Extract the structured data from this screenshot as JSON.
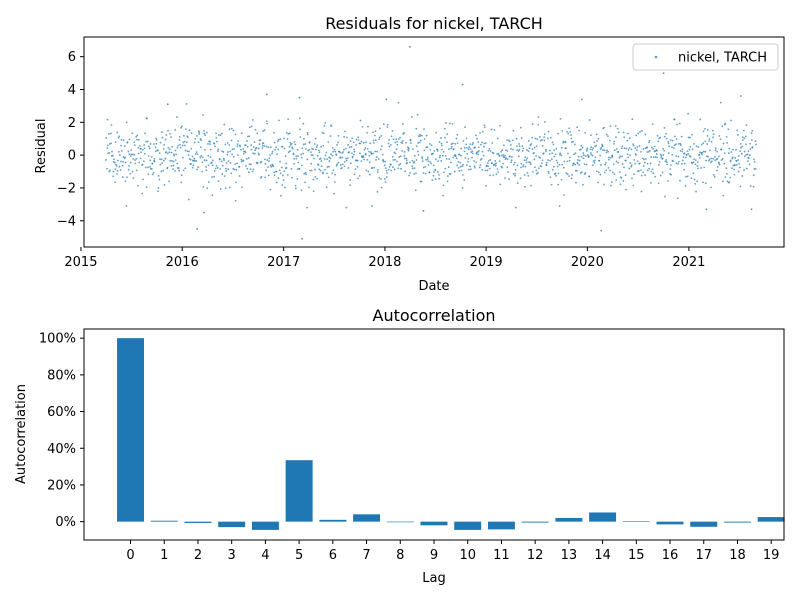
{
  "chart_data": [
    {
      "type": "scatter",
      "title": "Residuals for nickel, TARCH",
      "xlabel": "Date",
      "ylabel": "Residual",
      "xlim": [
        "2015-01-12",
        "2021-12-10"
      ],
      "ylim": [
        -5.6,
        7.2
      ],
      "x_ticks": [
        "2015-01-01",
        "2016-01-01",
        "2017-01-01",
        "2018-01-01",
        "2019-01-01",
        "2020-01-01",
        "2021-01-01"
      ],
      "x_tick_labels": [
        "2015",
        "2016",
        "2017",
        "2018",
        "2019",
        "2020",
        "2021"
      ],
      "y_ticks": [
        -4,
        -2,
        0,
        2,
        4,
        6
      ],
      "y_tick_labels": [
        "−4",
        "−2",
        "0",
        "2",
        "4",
        "6"
      ],
      "grid": false,
      "legend": {
        "position": "top-right",
        "entries": [
          "nickel, TARCH"
        ]
      },
      "series": [
        {
          "name": "nickel, TARCH",
          "color": "#1f77b4",
          "date_range": [
            "2015-04-01",
            "2021-08-31"
          ],
          "points": [
            [
              "2016-02-24",
              -4.5
            ],
            [
              "2017-03-08",
              -5.1
            ],
            [
              "2018-04-01",
              6.6
            ],
            [
              "2018-10-08",
              4.3
            ],
            [
              "2020-02-20",
              -4.6
            ],
            [
              "2020-10-02",
              5.0
            ],
            [
              "2016-11-01",
              3.7
            ],
            [
              "2017-02-27",
              3.5
            ],
            [
              "2018-01-06",
              3.4
            ],
            [
              "2019-12-12",
              3.4
            ],
            [
              "2021-07-08",
              3.6
            ],
            [
              "2015-11-10",
              3.1
            ],
            [
              "2021-08-15",
              -3.3
            ],
            [
              "2016-03-20",
              -3.5
            ],
            [
              "2018-05-20",
              -3.4
            ],
            [
              "2017-11-15",
              -3.1
            ],
            [
              "2021-03-05",
              -3.3
            ]
          ]
        }
      ]
    },
    {
      "type": "bar",
      "title": "Autocorrelation",
      "xlabel": "Lag",
      "ylabel": "Autocorrelation",
      "categories": [
        "0",
        "1",
        "2",
        "3",
        "4",
        "5",
        "6",
        "7",
        "8",
        "9",
        "10",
        "11",
        "12",
        "13",
        "14",
        "15",
        "16",
        "17",
        "18",
        "19"
      ],
      "values": [
        1.0,
        0.005,
        -0.007,
        -0.03,
        -0.045,
        0.335,
        0.01,
        0.04,
        0.0,
        -0.02,
        -0.045,
        -0.042,
        -0.005,
        0.02,
        0.05,
        0.003,
        -0.015,
        -0.028,
        -0.005,
        0.025
      ],
      "ylim": [
        -0.1,
        1.05
      ],
      "y_ticks": [
        0,
        0.2,
        0.4,
        0.6,
        0.8,
        1.0
      ],
      "y_tick_labels": [
        "0%",
        "20%",
        "40%",
        "60%",
        "80%",
        "100%"
      ],
      "grid": false,
      "color": "#1f77b4"
    }
  ]
}
